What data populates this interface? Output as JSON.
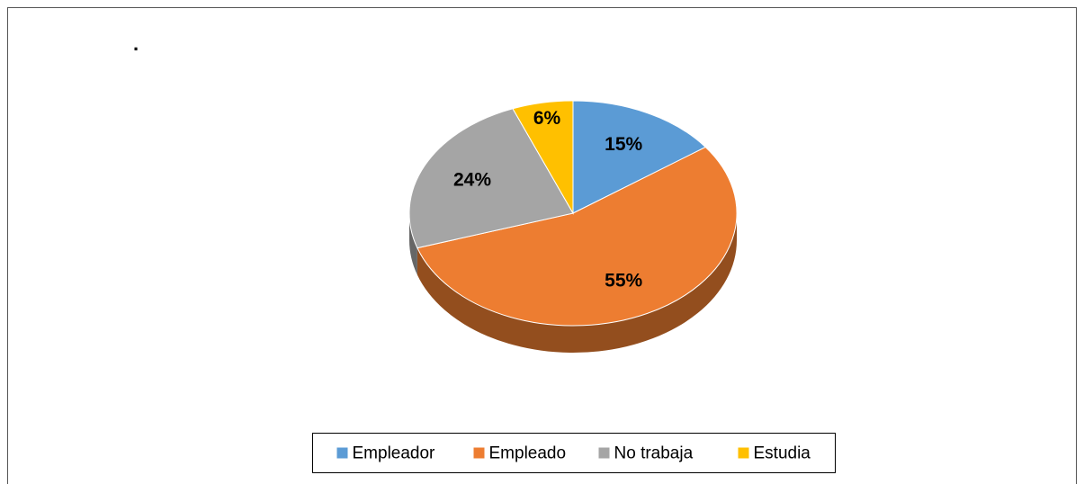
{
  "chart_data": {
    "type": "pie",
    "annotation": ".",
    "categories": [
      "Empleador",
      "Empleado",
      "No trabaja",
      "Estudia"
    ],
    "values": [
      15,
      55,
      24,
      6
    ],
    "value_labels": [
      "15%",
      "55%",
      "24%",
      "6%"
    ],
    "colors": [
      "#5b9bd5",
      "#ed7d31",
      "#a5a5a5",
      "#ffc000"
    ],
    "legend": "bottom"
  }
}
